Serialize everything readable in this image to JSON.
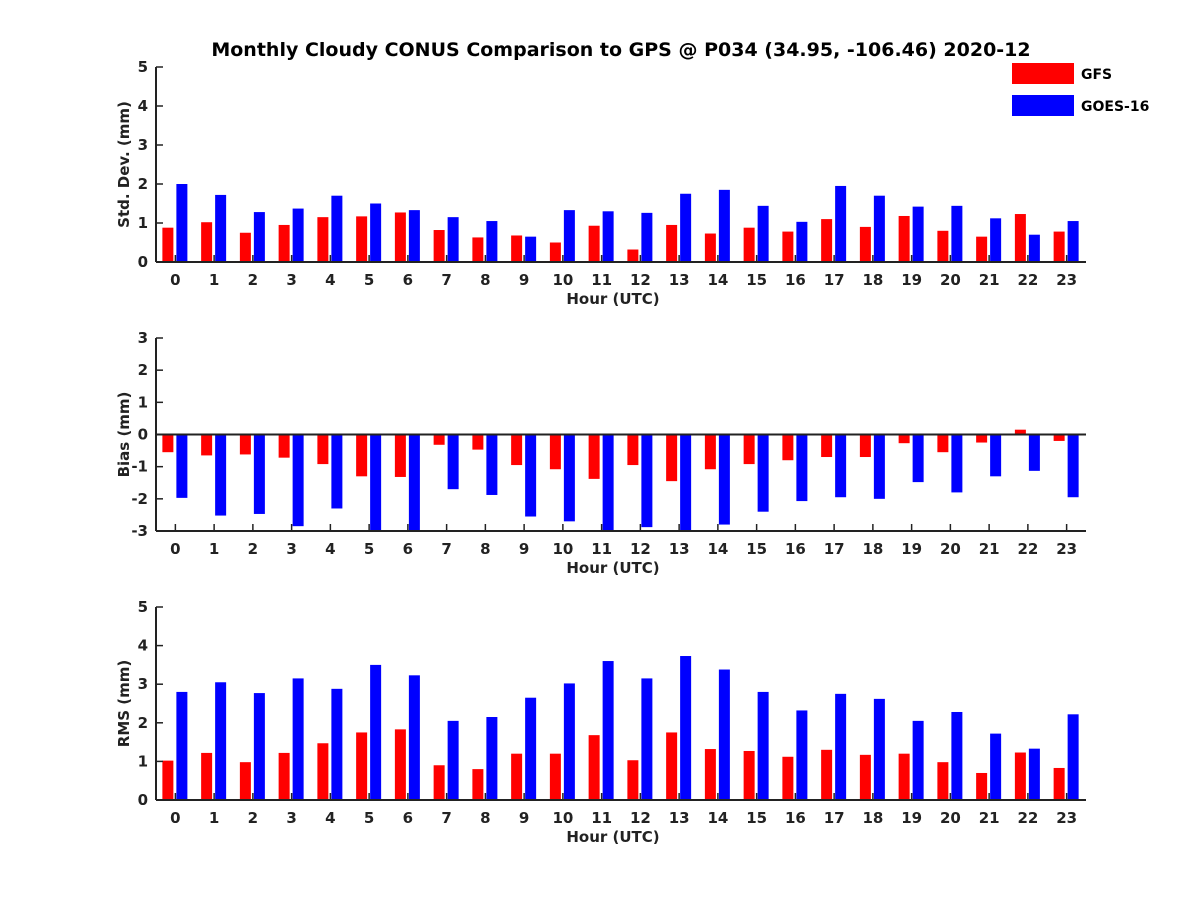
{
  "title": "Monthly Cloudy CONUS Comparison to GPS @ P034 (34.95, -106.46) 2020-12",
  "colors": {
    "GFS": "#ff0000",
    "GOES-16": "#0000ff",
    "axis": "#222222"
  },
  "chart_data": [
    {
      "type": "bar",
      "ylabel": "Std. Dev. (mm)",
      "xlabel": "Hour (UTC)",
      "ylim": [
        0,
        5
      ],
      "yticks": [
        "0",
        "1",
        "2",
        "3",
        "4",
        "5"
      ],
      "legend": "top-right",
      "categories": [
        "0",
        "1",
        "2",
        "3",
        "4",
        "5",
        "6",
        "7",
        "8",
        "9",
        "10",
        "11",
        "12",
        "13",
        "14",
        "15",
        "16",
        "17",
        "18",
        "19",
        "20",
        "21",
        "22",
        "23"
      ],
      "series": [
        {
          "name": "GFS",
          "values": [
            0.88,
            1.02,
            0.75,
            0.95,
            1.15,
            1.17,
            1.27,
            0.82,
            0.63,
            0.68,
            0.5,
            0.93,
            0.32,
            0.95,
            0.73,
            0.88,
            0.78,
            1.1,
            0.9,
            1.18,
            0.8,
            0.65,
            1.23,
            0.78
          ]
        },
        {
          "name": "GOES-16",
          "values": [
            2.0,
            1.72,
            1.28,
            1.37,
            1.7,
            1.5,
            1.33,
            1.15,
            1.05,
            0.65,
            1.33,
            1.3,
            1.26,
            1.75,
            1.85,
            1.44,
            1.03,
            1.95,
            1.7,
            1.42,
            1.44,
            1.12,
            0.7,
            1.05
          ]
        }
      ]
    },
    {
      "type": "bar",
      "ylabel": "Bias (mm)",
      "xlabel": "Hour (UTC)",
      "ylim": [
        -3,
        3
      ],
      "yticks": [
        "-3",
        "-2",
        "-1",
        "0",
        "1",
        "2",
        "3"
      ],
      "zero_line": true,
      "categories": [
        "0",
        "1",
        "2",
        "3",
        "4",
        "5",
        "6",
        "7",
        "8",
        "9",
        "10",
        "11",
        "12",
        "13",
        "14",
        "15",
        "16",
        "17",
        "18",
        "19",
        "20",
        "21",
        "22",
        "23"
      ],
      "series": [
        {
          "name": "GFS",
          "values": [
            -0.55,
            -0.65,
            -0.62,
            -0.72,
            -0.92,
            -1.3,
            -1.32,
            -0.32,
            -0.47,
            -0.95,
            -1.08,
            -1.38,
            -0.95,
            -1.45,
            -1.08,
            -0.92,
            -0.8,
            -0.7,
            -0.7,
            -0.27,
            -0.55,
            -0.25,
            0.15,
            -0.2
          ]
        },
        {
          "name": "GOES-16",
          "values": [
            -1.97,
            -2.52,
            -2.47,
            -2.85,
            -2.3,
            -3.0,
            -2.97,
            -1.7,
            -1.88,
            -2.55,
            -2.7,
            -3.0,
            -2.88,
            -3.0,
            -2.8,
            -2.4,
            -2.07,
            -1.95,
            -2.0,
            -1.48,
            -1.8,
            -1.3,
            -1.13,
            -1.95
          ]
        }
      ]
    },
    {
      "type": "bar",
      "ylabel": "RMS (mm)",
      "xlabel": "Hour (UTC)",
      "ylim": [
        0,
        5
      ],
      "yticks": [
        "0",
        "1",
        "2",
        "3",
        "4",
        "5"
      ],
      "categories": [
        "0",
        "1",
        "2",
        "3",
        "4",
        "5",
        "6",
        "7",
        "8",
        "9",
        "10",
        "11",
        "12",
        "13",
        "14",
        "15",
        "16",
        "17",
        "18",
        "19",
        "20",
        "21",
        "22",
        "23"
      ],
      "series": [
        {
          "name": "GFS",
          "values": [
            1.02,
            1.22,
            0.98,
            1.22,
            1.47,
            1.75,
            1.83,
            0.9,
            0.8,
            1.2,
            1.2,
            1.68,
            1.03,
            1.75,
            1.32,
            1.27,
            1.12,
            1.3,
            1.17,
            1.2,
            0.98,
            0.7,
            1.23,
            0.83
          ]
        },
        {
          "name": "GOES-16",
          "values": [
            2.8,
            3.05,
            2.77,
            3.15,
            2.88,
            3.5,
            3.23,
            2.05,
            2.15,
            2.65,
            3.02,
            3.6,
            3.15,
            3.73,
            3.38,
            2.8,
            2.32,
            2.75,
            2.62,
            2.05,
            2.28,
            1.72,
            1.33,
            2.22
          ]
        }
      ]
    }
  ]
}
